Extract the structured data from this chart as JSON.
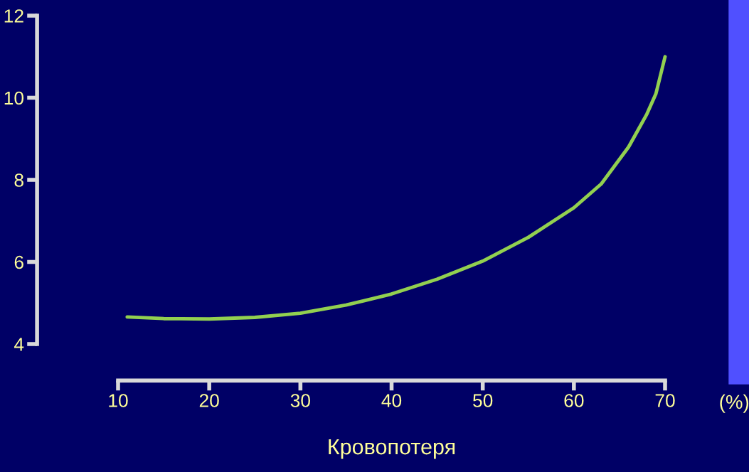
{
  "chart_data": {
    "type": "line",
    "xlabel": "Кровопотеря",
    "annotations": [
      "(%)"
    ],
    "x": [
      11,
      15,
      20,
      25,
      30,
      35,
      40,
      45,
      50,
      55,
      60,
      63,
      66,
      68,
      69,
      70
    ],
    "series": [
      {
        "color": "#92d050",
        "values": [
          4.66,
          4.62,
          4.61,
          4.65,
          4.75,
          4.95,
          5.22,
          5.58,
          6.02,
          6.6,
          7.32,
          7.9,
          8.8,
          9.6,
          10.1,
          11.0
        ]
      }
    ],
    "xlim": [
      10,
      70
    ],
    "xticks": [
      10,
      20,
      30,
      40,
      50,
      60,
      70
    ],
    "ylim": [
      4,
      12
    ],
    "yticks": [
      4,
      6,
      8,
      10,
      12
    ],
    "grid": false,
    "legend": false,
    "marker": "none",
    "line_style": "solid"
  }
}
